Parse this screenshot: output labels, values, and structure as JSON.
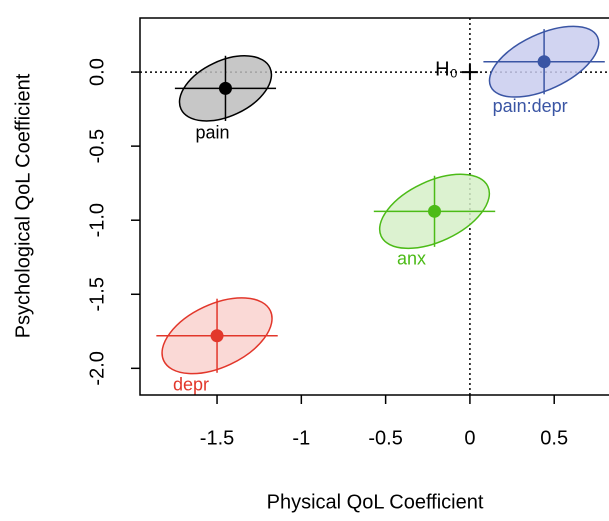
{
  "chart_data": {
    "type": "scatter",
    "xlabel": "Physical QoL Coefficient",
    "ylabel": "Psychological QoL Coefficient",
    "xlim": [
      -1.957,
      0.825
    ],
    "ylim": [
      -2.18,
      0.365
    ],
    "xticks": [
      -1.5,
      -1.0,
      -0.5,
      0.0,
      0.5
    ],
    "yticks": [
      -2.0,
      -1.5,
      -1.0,
      -0.5,
      0.0
    ],
    "reference": {
      "label": "H₀",
      "x": 0,
      "y": 0
    },
    "points": [
      {
        "label": "pain",
        "x": -1.45,
        "y": -0.11,
        "xerr": 0.3,
        "yerr": 0.22,
        "color": "#000000",
        "fill": "#bdbdbd"
      },
      {
        "label": "depr",
        "x": -1.5,
        "y": -1.78,
        "xerr": 0.36,
        "yerr": 0.25,
        "color": "#e2372b",
        "fill": "#f9d2cf"
      },
      {
        "label": "anx",
        "x": -0.21,
        "y": -0.94,
        "xerr": 0.36,
        "yerr": 0.24,
        "color": "#4cbb17",
        "fill": "#d6f0c8"
      },
      {
        "label": "pain:depr",
        "x": 0.44,
        "y": 0.07,
        "xerr": 0.36,
        "yerr": 0.22,
        "color": "#3a55a4",
        "fill": "#c9cdee"
      }
    ]
  }
}
